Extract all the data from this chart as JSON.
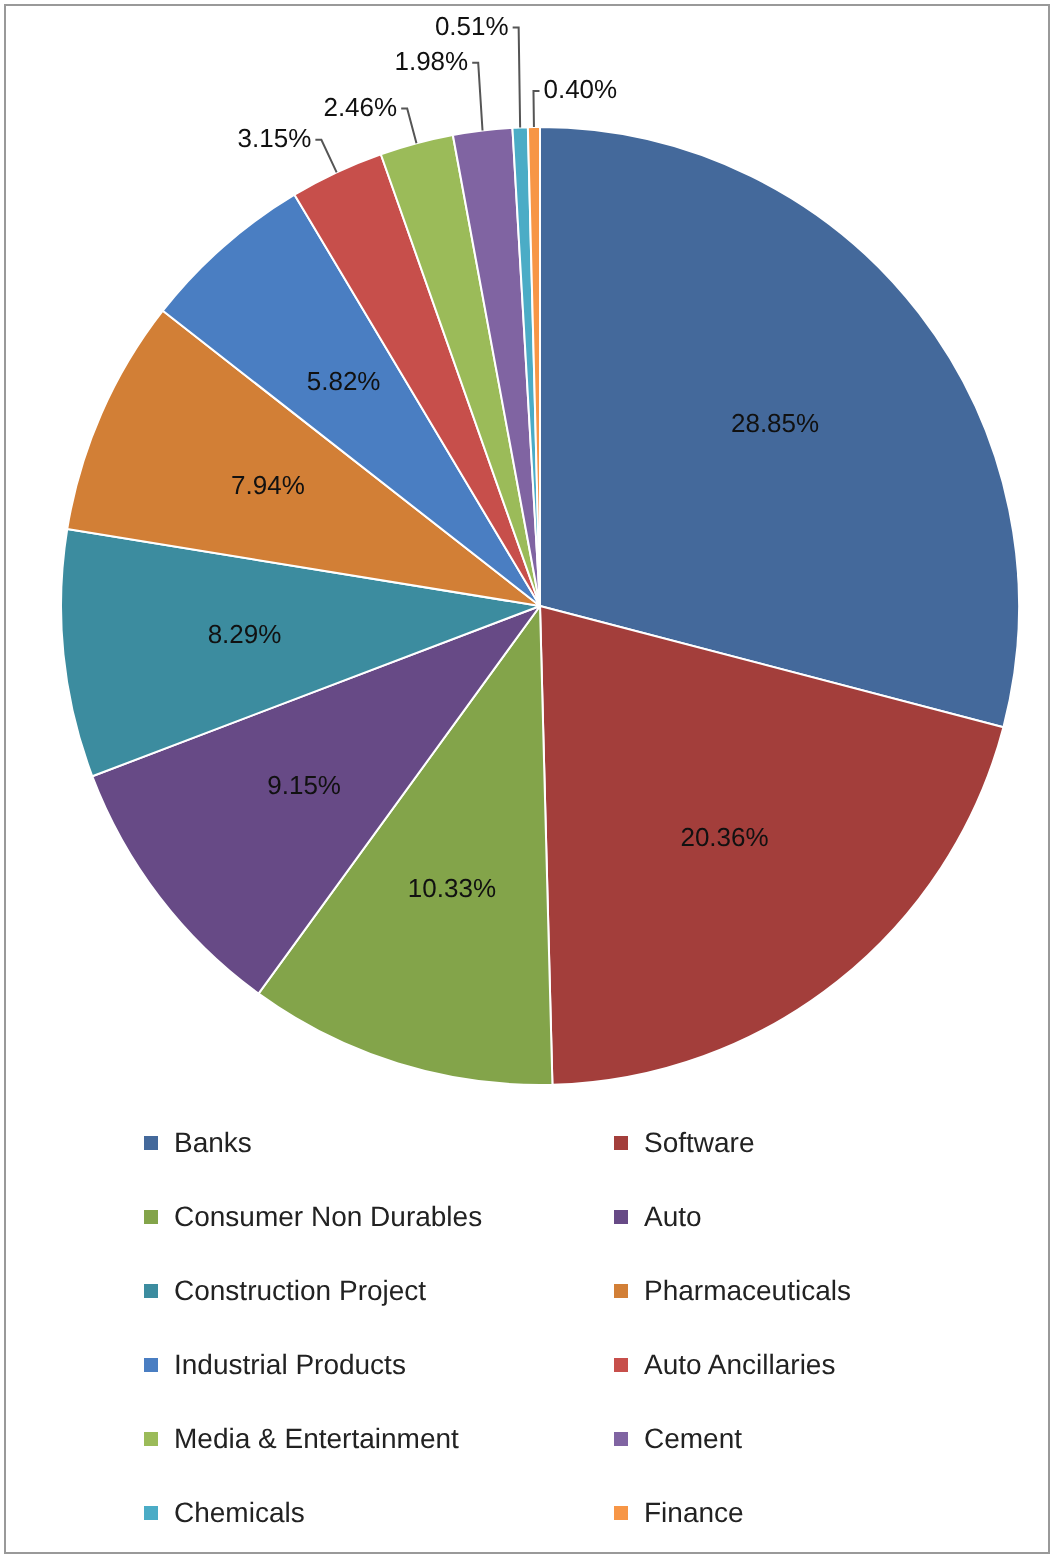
{
  "chart_data": {
    "type": "pie",
    "categories": [
      "Banks",
      "Software",
      "Consumer Non Durables",
      "Auto",
      "Construction Project",
      "Pharmaceuticals",
      "Industrial Products",
      "Auto Ancillaries",
      "Media & Entertainment",
      "Cement",
      "Chemicals",
      "Finance"
    ],
    "values": [
      28.85,
      20.36,
      10.33,
      9.15,
      8.29,
      7.94,
      5.82,
      3.15,
      2.46,
      1.98,
      0.51,
      0.4
    ],
    "colors": [
      "#44699b",
      "#a33e3b",
      "#83a44a",
      "#674a86",
      "#3c8c9f",
      "#d27f36",
      "#4a7ec2",
      "#c74f4b",
      "#9bbb59",
      "#8064a2",
      "#4bacc6",
      "#f79646"
    ],
    "value_labels": [
      "28.85%",
      "20.36%",
      "10.33%",
      "9.15%",
      "8.29%",
      "7.94%",
      "5.82%",
      "3.15%",
      "2.46%",
      "1.98%",
      "0.51%",
      "0.40%"
    ],
    "legend": "bottom"
  }
}
